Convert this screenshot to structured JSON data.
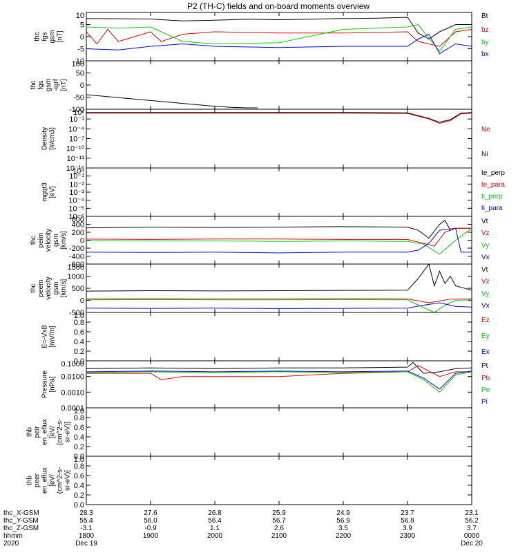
{
  "title": "P2 (TH-C) fields and on-board moments overview",
  "colors": {
    "black": "#000000",
    "red": "#e00000",
    "green": "#00d000",
    "blue": "#0000e0"
  },
  "chart_data": [
    {
      "type": "line",
      "ylabel": [
        "thc",
        "fgs",
        "gsm",
        "[nT]"
      ],
      "yticks": [
        "10",
        "5",
        "0",
        "-5",
        "-10"
      ],
      "ylim": [
        -10,
        10
      ],
      "legend": [
        {
          "name": "Bt",
          "color": "#000000"
        },
        {
          "name": "bz",
          "color": "#e00000"
        },
        {
          "name": "by",
          "color": "#00d000"
        },
        {
          "name": "bx",
          "color": "#0000e0"
        }
      ],
      "series": [
        {
          "name": "Bt",
          "color": "#000000",
          "x": [
            1800,
            1830,
            1900,
            1930,
            2000,
            2030,
            2100,
            2130,
            2200,
            2230,
            2300,
            2310,
            2320,
            2330,
            2345,
            2400
          ],
          "y": [
            7.5,
            7.4,
            7.3,
            6.5,
            6.8,
            7.2,
            7.0,
            7.2,
            7.5,
            7.6,
            8,
            1.5,
            -1,
            2,
            5,
            5
          ]
        },
        {
          "name": "bz",
          "color": "#e00000",
          "x": [
            1800,
            1810,
            1820,
            1830,
            1900,
            1910,
            1930,
            2000,
            2100,
            2200,
            2300,
            2310,
            2330,
            2345,
            2400
          ],
          "y": [
            2,
            -3,
            3,
            -2,
            2,
            -2,
            1,
            2,
            1.5,
            1.5,
            2,
            -2,
            -4,
            2,
            3
          ]
        },
        {
          "name": "by",
          "color": "#00d000",
          "x": [
            1800,
            1830,
            1900,
            1930,
            2000,
            2100,
            2200,
            2300,
            2310,
            2330,
            2345,
            2400
          ],
          "y": [
            4,
            3.5,
            4,
            -2,
            -3,
            -2.5,
            3,
            4,
            5,
            -6,
            3,
            4
          ]
        },
        {
          "name": "bx",
          "color": "#0000e0",
          "x": [
            1800,
            1830,
            1900,
            1930,
            2000,
            2100,
            2200,
            2300,
            2310,
            2320,
            2330,
            2345,
            2400
          ],
          "y": [
            -5,
            -5.5,
            -4,
            -3,
            -4,
            -4.5,
            -4,
            -4,
            -1,
            1,
            -7,
            -3,
            -4
          ]
        }
      ]
    },
    {
      "type": "line",
      "ylabel": [
        "thc",
        "fgs",
        "gsm",
        "-igrf",
        "[nT]"
      ],
      "yticks": [
        "100",
        "50",
        "0",
        "-50",
        "-100"
      ],
      "ylim": [
        -125,
        125
      ],
      "legend": [],
      "series": [
        {
          "name": "",
          "color": "#000000",
          "x": [
            1800,
            1830,
            1900,
            1930,
            2000,
            2015,
            2030,
            2040
          ],
          "y": [
            -50,
            -65,
            -80,
            -95,
            -110,
            -115,
            -118,
            -118
          ]
        }
      ]
    },
    {
      "type": "line",
      "ylabel": [
        "Density",
        "[#/cm3]"
      ],
      "yticks": [
        "10²",
        "10⁻¹",
        "10⁻⁴",
        "10⁻⁷",
        "10⁻¹⁰",
        "10⁻¹³",
        "10⁻¹⁶"
      ],
      "ylim": [
        -16,
        2
      ],
      "legend": [
        {
          "name": "Ne",
          "color": "#e00000"
        },
        {
          "name": "Ni",
          "color": "#000000"
        }
      ],
      "series": [
        {
          "name": "Ne",
          "color": "#e00000",
          "x": [
            1800,
            2100,
            2200,
            2300,
            2320,
            2330,
            2340,
            2350,
            2400
          ],
          "y": [
            0.8,
            0.8,
            0.8,
            0.7,
            -1,
            -2.3,
            -1.5,
            0.6,
            0.8
          ]
        },
        {
          "name": "Ni",
          "color": "#000000",
          "x": [
            1800,
            2100,
            2200,
            2300,
            2320,
            2330,
            2340,
            2350,
            2400
          ],
          "y": [
            1,
            1,
            1,
            0.9,
            -0.8,
            -2,
            -1.2,
            0.8,
            1
          ]
        }
      ]
    },
    {
      "type": "line",
      "ylabel": [
        "mgqt3",
        "[eV]"
      ],
      "yticks": [
        "10⁴",
        "10⁻¹",
        "10⁻²",
        "10⁻³",
        "10⁻⁴",
        "10⁻⁵",
        "10⁻⁶"
      ],
      "ylim": [
        -6.5,
        0.5
      ],
      "legend": [
        {
          "name": "te_perp",
          "color": "#000000"
        },
        {
          "name": "te_para",
          "color": "#e00000"
        },
        {
          "name": "ti_perp",
          "color": "#00d000"
        },
        {
          "name": "ti_para",
          "color": "#0000e0"
        }
      ],
      "series": []
    },
    {
      "type": "line",
      "ylabel": [
        "thc",
        "peim",
        "velocity",
        "gsm",
        "[km/s]"
      ],
      "yticks": [
        "600",
        "400",
        "200",
        "0",
        "-200",
        "-400",
        "-600"
      ],
      "ylim": [
        -600,
        600
      ],
      "legend": [
        {
          "name": "Vt",
          "color": "#000000"
        },
        {
          "name": "Vz",
          "color": "#e00000"
        },
        {
          "name": "Vy",
          "color": "#00d000"
        },
        {
          "name": "Vx",
          "color": "#0000e0"
        }
      ],
      "series": [
        {
          "name": "Vt",
          "color": "#000000",
          "x": [
            1800,
            1900,
            2000,
            2100,
            2200,
            2300,
            2310,
            2320,
            2330,
            2335,
            2340,
            2345,
            2350,
            2400
          ],
          "y": [
            310,
            330,
            320,
            330,
            340,
            330,
            250,
            50,
            400,
            500,
            250,
            300,
            300,
            300
          ]
        },
        {
          "name": "Vz",
          "color": "#e00000",
          "x": [
            1800,
            1900,
            2000,
            2100,
            2200,
            2300,
            2315,
            2325,
            2335,
            2345,
            2400
          ],
          "y": [
            30,
            20,
            30,
            30,
            20,
            20,
            -80,
            -150,
            200,
            300,
            300
          ]
        },
        {
          "name": "Vy",
          "color": "#00d000",
          "x": [
            1800,
            1900,
            2000,
            2100,
            2200,
            2300,
            2315,
            2330,
            2345,
            2400
          ],
          "y": [
            -10,
            -20,
            -20,
            -30,
            -20,
            -30,
            -100,
            -350,
            0,
            300
          ]
        },
        {
          "name": "Vx",
          "color": "#0000e0",
          "x": [
            1800,
            1900,
            2000,
            2100,
            2200,
            2300,
            2310,
            2320,
            2330,
            2345,
            2350,
            2400
          ],
          "y": [
            -300,
            -310,
            -300,
            -320,
            -300,
            -300,
            -250,
            -80,
            250,
            300,
            -300,
            -300
          ]
        }
      ]
    },
    {
      "type": "line",
      "ylabel": [
        "thc",
        "peem",
        "velocity",
        "gsm",
        "[km/s]"
      ],
      "yticks": [
        "1500",
        "1000",
        "500",
        "0",
        "-500"
      ],
      "ylim": [
        -500,
        1500
      ],
      "legend": [
        {
          "name": "Vt",
          "color": "#000000"
        },
        {
          "name": "Vz",
          "color": "#e00000"
        },
        {
          "name": "Vy",
          "color": "#00d000"
        },
        {
          "name": "Vx",
          "color": "#0000e0"
        }
      ],
      "series": [
        {
          "name": "Vt",
          "color": "#000000",
          "x": [
            1800,
            1900,
            2000,
            2100,
            2200,
            2300,
            2310,
            2320,
            2325,
            2330,
            2335,
            2340,
            2345,
            2400
          ],
          "y": [
            380,
            400,
            390,
            400,
            410,
            420,
            900,
            1500,
            600,
            1200,
            700,
            1000,
            600,
            420
          ]
        },
        {
          "name": "Vz",
          "color": "#e00000",
          "x": [
            1800,
            1900,
            2000,
            2100,
            2200,
            2300,
            2320,
            2340,
            2400
          ],
          "y": [
            60,
            70,
            60,
            60,
            70,
            60,
            -100,
            50,
            60
          ]
        },
        {
          "name": "Vy",
          "color": "#00d000",
          "x": [
            1800,
            1900,
            2000,
            2100,
            2200,
            2300,
            2315,
            2325,
            2335,
            2345,
            2400
          ],
          "y": [
            20,
            30,
            20,
            20,
            30,
            20,
            -300,
            -500,
            -200,
            0,
            20
          ]
        },
        {
          "name": "Vx",
          "color": "#0000e0",
          "x": [
            1800,
            1900,
            2000,
            2100,
            2200,
            2300,
            2315,
            2330,
            2345,
            2400
          ],
          "y": [
            -320,
            -330,
            -320,
            -340,
            -330,
            -320,
            -200,
            -100,
            -250,
            -280
          ]
        }
      ]
    },
    {
      "type": "line",
      "ylabel": [
        "E=-VxB",
        "[mV/m]"
      ],
      "yticks": [
        "1.0",
        "0.8",
        "0.6",
        "0.4",
        "0.2",
        "0.0"
      ],
      "ylim": [
        0,
        1
      ],
      "legend": [
        {
          "name": "Ez",
          "color": "#e00000"
        },
        {
          "name": "Ey",
          "color": "#00d000"
        },
        {
          "name": "Ex",
          "color": "#0000e0"
        }
      ],
      "series": []
    },
    {
      "type": "line",
      "ylabel": [
        "Pressure",
        "[nPa]"
      ],
      "yticks": [
        "0.1000",
        "0.0100",
        "0.0010",
        "0.0001"
      ],
      "ylim": [
        -4,
        -1
      ],
      "legend": [
        {
          "name": "Pt",
          "color": "#000000"
        },
        {
          "name": "Pb",
          "color": "#e00000"
        },
        {
          "name": "Pe",
          "color": "#00d000"
        },
        {
          "name": "Pi",
          "color": "#0000e0"
        }
      ],
      "series": [
        {
          "name": "Pt",
          "color": "#000000",
          "x": [
            1800,
            1900,
            2000,
            2100,
            2200,
            2300,
            2305,
            2315,
            2330,
            2345,
            2400
          ],
          "y": [
            -1.5,
            -1.45,
            -1.5,
            -1.45,
            -1.45,
            -1.4,
            -1.1,
            -1.8,
            -1.7,
            -1.5,
            -1.45
          ]
        },
        {
          "name": "Pb",
          "color": "#e00000",
          "x": [
            1800,
            1900,
            1910,
            1930,
            2000,
            2100,
            2200,
            2300,
            2310,
            2330,
            2345,
            2400
          ],
          "y": [
            -1.8,
            -1.8,
            -2.2,
            -2.0,
            -2.0,
            -2.0,
            -1.8,
            -1.7,
            -1.3,
            -2.0,
            -1.7,
            -1.7
          ]
        },
        {
          "name": "Pe",
          "color": "#00d000",
          "x": [
            1800,
            1900,
            2000,
            2100,
            2200,
            2300,
            2315,
            2330,
            2345,
            2400
          ],
          "y": [
            -1.75,
            -1.7,
            -1.75,
            -1.7,
            -1.75,
            -1.7,
            -2.2,
            -3.0,
            -1.9,
            -1.7
          ]
        },
        {
          "name": "Pi",
          "color": "#0000e0",
          "x": [
            1800,
            1900,
            2000,
            2100,
            2200,
            2300,
            2315,
            2330,
            2345,
            2400
          ],
          "y": [
            -1.7,
            -1.65,
            -1.7,
            -1.65,
            -1.7,
            -1.65,
            -2.1,
            -2.8,
            -1.8,
            -1.65
          ]
        }
      ]
    },
    {
      "type": "line",
      "ylabel": [
        "thb",
        "peir",
        "en_eflux",
        "[eV/",
        "(cm^2-s-",
        "sr-eV)]"
      ],
      "yticks": [
        "1.0",
        "0.8",
        "0.6",
        "0.4",
        "0.2",
        "0.0"
      ],
      "ylim": [
        0,
        1
      ],
      "legend": [],
      "series": []
    },
    {
      "type": "line",
      "ylabel": [
        "thb",
        "peer",
        "en_eflux",
        "[eV/",
        "(cm^2-s-",
        "sr-eV)]"
      ],
      "yticks": [
        "1.0",
        "0.8",
        "0.6",
        "0.4",
        "0.2",
        "0.0"
      ],
      "ylim": [
        0,
        1
      ],
      "legend": [],
      "series": []
    }
  ],
  "x_axis": {
    "xlim": [
      1800,
      2400
    ],
    "rows": [
      {
        "label": "thc_X-GSM",
        "values": [
          "28.3",
          "27.6",
          "26.8",
          "25.9",
          "24.9",
          "23.7",
          "23.1"
        ]
      },
      {
        "label": "thc_Y-GSM",
        "values": [
          "55.4",
          "56.0",
          "56.4",
          "56.7",
          "56.9",
          "56.8",
          "56.2"
        ]
      },
      {
        "label": "thc_Z-GSM",
        "values": [
          "-3.1",
          "-0.9",
          "1.1",
          "2.6",
          "3.5",
          "3.9",
          "3.7"
        ]
      },
      {
        "label": "hhmm",
        "values": [
          "1800",
          "1900",
          "2000",
          "2100",
          "2200",
          "2300",
          "0000"
        ]
      }
    ],
    "year": "2020",
    "date_start": "Dec 19",
    "date_end": "Dec 20"
  }
}
